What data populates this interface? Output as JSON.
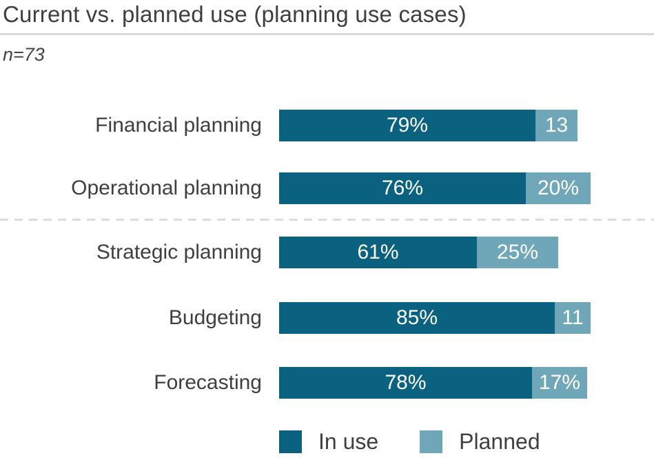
{
  "title": "Current vs. planned use (planning use cases)",
  "sample_note": "n=73",
  "colors": {
    "in_use": "#0a6280",
    "planned": "#6fa7b8",
    "text": "#3f3f3f",
    "divider": "#d9d9d9",
    "bar_value_text": "#ffffff"
  },
  "chart_data": {
    "type": "bar",
    "orientation": "horizontal",
    "stacked": true,
    "title": "Current vs. planned use (planning use cases)",
    "subtitle": "n=73",
    "xlim": [
      0,
      115
    ],
    "grid": false,
    "legend_position": "bottom",
    "categories": [
      "Financial planning",
      "Operational planning",
      "Strategic planning",
      "Budgeting",
      "Forecasting"
    ],
    "series": [
      {
        "name": "In use",
        "color": "#0a6280",
        "values": [
          79,
          76,
          61,
          85,
          78
        ],
        "data_labels": [
          "79%",
          "76%",
          "61%",
          "85%",
          "78%"
        ]
      },
      {
        "name": "Planned",
        "color": "#6fa7b8",
        "values": [
          13,
          20,
          25,
          11,
          17
        ],
        "data_labels": [
          "13",
          "20%",
          "25%",
          "11",
          "17%"
        ]
      }
    ],
    "divider_after_category_index": 1
  },
  "legend": {
    "items": [
      {
        "label": "In use",
        "color": "#0a6280"
      },
      {
        "label": "Planned",
        "color": "#6fa7b8"
      }
    ]
  }
}
